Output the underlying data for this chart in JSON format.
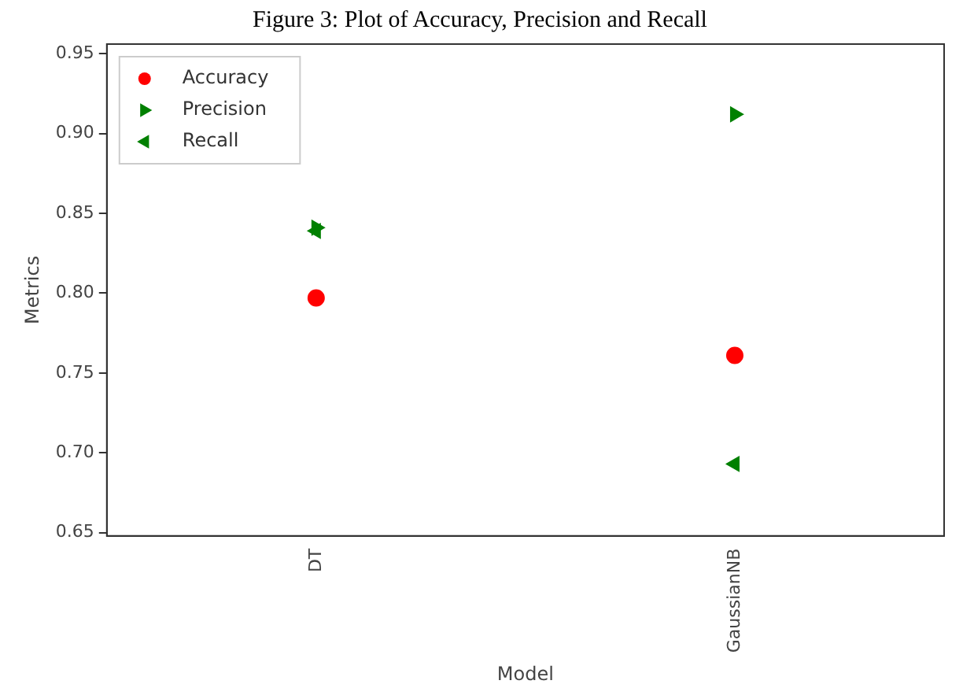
{
  "chart_data": {
    "type": "scatter",
    "title": "Figure 3: Plot of Accuracy, Precision and Recall",
    "xlabel": "Model",
    "ylabel": "Metrics",
    "categories": [
      "DT",
      "GaussianNB"
    ],
    "series": [
      {
        "name": "Accuracy",
        "color": "#ff0000",
        "marker": "circle",
        "values": [
          0.797,
          0.761
        ]
      },
      {
        "name": "Precision",
        "color": "#008000",
        "marker": "triangle-right",
        "values": [
          0.841,
          0.912
        ]
      },
      {
        "name": "Recall",
        "color": "#008000",
        "marker": "triangle-left",
        "values": [
          0.839,
          0.693
        ]
      }
    ],
    "ylim": [
      0.648,
      0.956
    ],
    "yticks": [
      0.65,
      {
        "value": 0.7,
        "label": "0.70"
      },
      0.75,
      {
        "value": 0.8,
        "label": "0.80"
      },
      0.85,
      {
        "value": 0.9,
        "label": "0.90"
      },
      0.95
    ],
    "grid": false,
    "legend": "top left"
  }
}
